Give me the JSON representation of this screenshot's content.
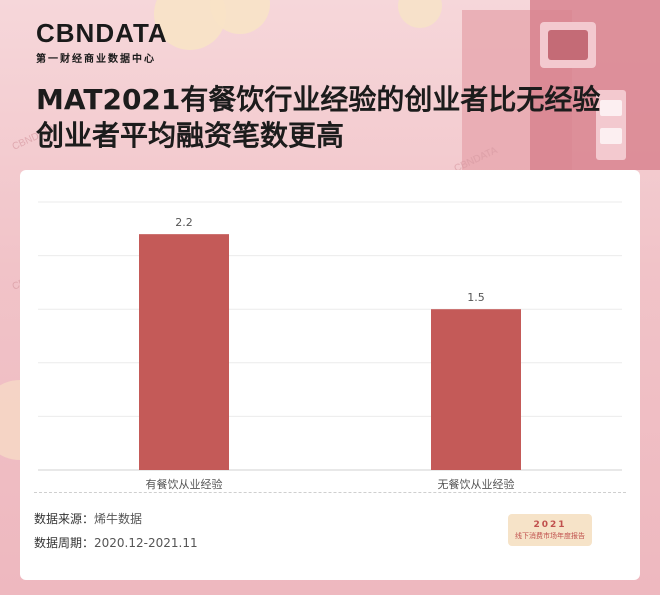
{
  "brand": {
    "logo": "CBNDATA",
    "subtitle": "第一财经商业数据中心"
  },
  "title_lines": [
    "MAT2021有餐饮行业经验的创业者比无经验",
    "创业者平均融资笔数更高"
  ],
  "footer": {
    "source_label": "数据来源：",
    "source_value": "烯牛数据",
    "period_label": "数据周期：",
    "period_value": "2020.12-2021.11"
  },
  "badge": {
    "year": "2021",
    "text": "线下消费市场年度报告"
  },
  "colors": {
    "bar": "#c45a58",
    "background": "#f1c3c8"
  },
  "chart_data": {
    "type": "bar",
    "categories": [
      "有餐饮从业经验",
      "无餐饮从业经验"
    ],
    "values": [
      2.2,
      1.5
    ],
    "title": "",
    "xlabel": "",
    "ylabel": "",
    "ylim": [
      0,
      2.5
    ],
    "grid": true,
    "data_labels": [
      "2.2",
      "1.5"
    ]
  }
}
